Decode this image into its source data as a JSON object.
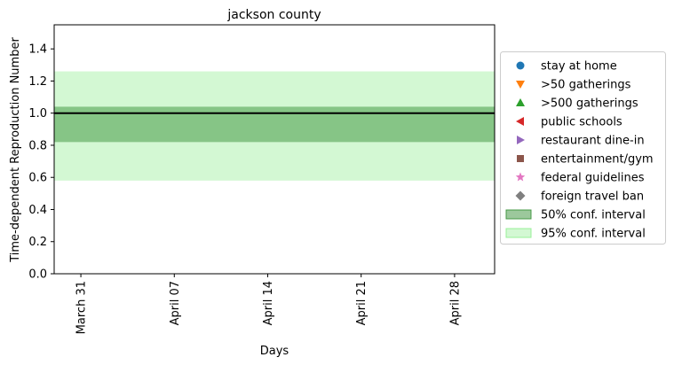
{
  "chart_data": {
    "type": "line",
    "title": "jackson county",
    "xlabel": "Days",
    "ylabel": "Time-dependent Reproduction Number",
    "x_ticks": [
      {
        "day": 0,
        "label": "March 31"
      },
      {
        "day": 7,
        "label": "April 07"
      },
      {
        "day": 14,
        "label": "April 14"
      },
      {
        "day": 21,
        "label": "April 21"
      },
      {
        "day": 28,
        "label": "April 28"
      }
    ],
    "x_range_days": [
      -2,
      31
    ],
    "ylim": [
      0,
      1.55
    ],
    "y_ticks": [
      "0.0",
      "0.2",
      "0.4",
      "0.6",
      "0.8",
      "1.0",
      "1.2",
      "1.4"
    ],
    "series": [
      {
        "name": "",
        "values": [
          1.0,
          1.0
        ],
        "color": "#000000"
      }
    ],
    "bands": {
      "ci50": {
        "lower": 0.82,
        "upper": 1.04
      },
      "ci95": {
        "lower": 0.58,
        "upper": 1.26
      }
    },
    "grid": false,
    "legend_position": "right",
    "legend": [
      {
        "label": "stay at home",
        "marker": "circle",
        "color": "#1f77b4"
      },
      {
        "label": ">50 gatherings",
        "marker": "triangle-down",
        "color": "#ff7f0e"
      },
      {
        "label": ">500 gatherings",
        "marker": "triangle-up",
        "color": "#2ca02c"
      },
      {
        "label": "public schools",
        "marker": "triangle-left",
        "color": "#d62728"
      },
      {
        "label": "restaurant dine-in",
        "marker": "triangle-right",
        "color": "#9467bd"
      },
      {
        "label": "entertainment/gym",
        "marker": "square",
        "color": "#8c564b"
      },
      {
        "label": "federal guidelines",
        "marker": "star",
        "color": "#e377c2"
      },
      {
        "label": "foreign travel ban",
        "marker": "diamond",
        "color": "#7f7f7f"
      },
      {
        "label": "50% conf. interval",
        "marker": "patch",
        "color": "#3a923a"
      },
      {
        "label": "95% conf. interval",
        "marker": "patch",
        "color": "#90ee90"
      }
    ]
  }
}
